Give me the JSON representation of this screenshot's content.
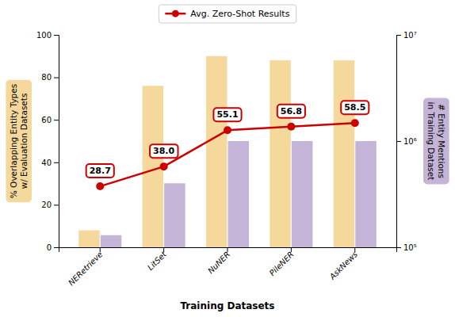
{
  "chart_data": {
    "type": "bar",
    "categories": [
      "NERetrieve",
      "LitSet",
      "NuNER",
      "PileNER",
      "AskNews"
    ],
    "xlabel": "Training Datasets",
    "ylabel": "% Overlapping Entity Types\nw/ Evaluation Datasets",
    "y2label": "# Entity Mentions\nin Training Dataset",
    "series": [
      {
        "type": "bar",
        "color": "#F5D89C",
        "values": [
          8,
          76,
          90,
          88,
          88
        ]
      },
      {
        "type": "bar",
        "color": "#C4B4D8",
        "axis": "y2",
        "values": [
          130000,
          400000,
          1000000,
          1000000,
          1000000
        ]
      },
      {
        "type": "line",
        "name": "Avg. Zero-Shot Results",
        "color": "#CC0000",
        "marker": "circle",
        "line_style": "solid",
        "data_labels": true,
        "values": [
          28.7,
          38.0,
          55.1,
          56.8,
          58.5
        ],
        "value_labels": [
          "28.7",
          "38.0",
          "55.1",
          "56.8",
          "58.5"
        ]
      }
    ],
    "ylim": [
      0,
      100
    ],
    "yticks": [
      0,
      20,
      40,
      60,
      80,
      100
    ],
    "y2lim": [
      100000,
      10000000
    ],
    "y2ticks": [
      {
        "value": 100000,
        "label": "10⁵"
      },
      {
        "value": 1000000,
        "label": "10⁶"
      },
      {
        "value": 10000000,
        "label": "10⁷"
      }
    ],
    "log": "y2",
    "grid": false,
    "legend": "top"
  }
}
